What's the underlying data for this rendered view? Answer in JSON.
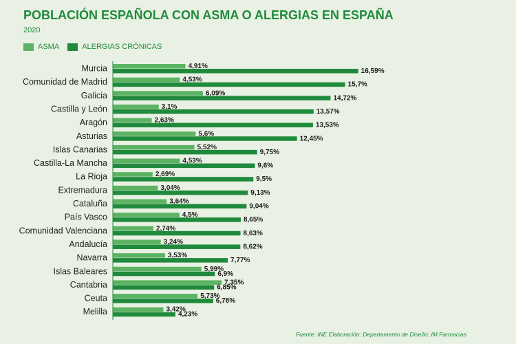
{
  "header": {
    "title": "POBLACIÓN ESPAÑOLA CON ASMA O ALERGIAS EN ESPAÑA",
    "subtitle": "2020"
  },
  "legend": [
    {
      "label": "ASMA",
      "color": "#5cb363"
    },
    {
      "label": "ALERGIAS CRÓNICAS",
      "color": "#1f8a3c"
    }
  ],
  "footer": {
    "source": "Fuente: INE   Elaboración: Departamento de Diseño: IM Farmacias"
  },
  "chart_data": {
    "type": "bar",
    "orientation": "horizontal",
    "title": "POBLACIÓN ESPAÑOLA CON ASMA O ALERGIAS EN ESPAÑA",
    "subtitle": "2020",
    "categories": [
      "Murcia",
      "Comunidad de Madrid",
      "Galicia",
      "Castilla y León",
      "Aragón",
      "Asturias",
      "Islas Canarias",
      "Castilla-La Mancha",
      "La Rioja",
      "Extremadura",
      "Cataluña",
      "País Vasco",
      "Comunidad Valenciana",
      "Andalucía",
      "Navarra",
      "Islas Baleares",
      "Cantabria",
      "Ceuta",
      "Melilla"
    ],
    "series": [
      {
        "name": "ASMA",
        "color": "#5cb363",
        "values": [
          4.91,
          4.53,
          6.09,
          3.1,
          2.63,
          5.6,
          5.52,
          4.53,
          2.69,
          3.04,
          3.64,
          4.5,
          2.74,
          3.24,
          3.53,
          5.99,
          7.35,
          5.73,
          3.42
        ],
        "labels": [
          "4,91%",
          "4,53%",
          "6,09%",
          "3,1%",
          "2,63%",
          "5,6%",
          "5,52%",
          "4,53%",
          "2,69%",
          "3,04%",
          "3,64%",
          "4,5%",
          "2,74%",
          "3,24%",
          "3,53%",
          "5,99%",
          "7,35%",
          "5,73%",
          "3,42%"
        ]
      },
      {
        "name": "ALERGIAS CRÓNICAS",
        "color": "#1f8a3c",
        "values": [
          16.59,
          15.7,
          14.72,
          13.57,
          13.53,
          12.45,
          9.75,
          9.6,
          9.5,
          9.13,
          9.04,
          8.65,
          8.63,
          8.62,
          7.77,
          6.9,
          6.85,
          6.78,
          4.23
        ],
        "labels": [
          "16,59%",
          "15,7%",
          "14,72%",
          "13,57%",
          "13,53%",
          "12,45%",
          "9,75%",
          "9,6%",
          "9,5%",
          "9,13%",
          "9,04%",
          "8,65%",
          "8,63%",
          "8,62%",
          "7,77%",
          "6,9%",
          "6,85%",
          "6,78%",
          "4,23%"
        ]
      }
    ],
    "legend": "top-left",
    "grid": false
  }
}
